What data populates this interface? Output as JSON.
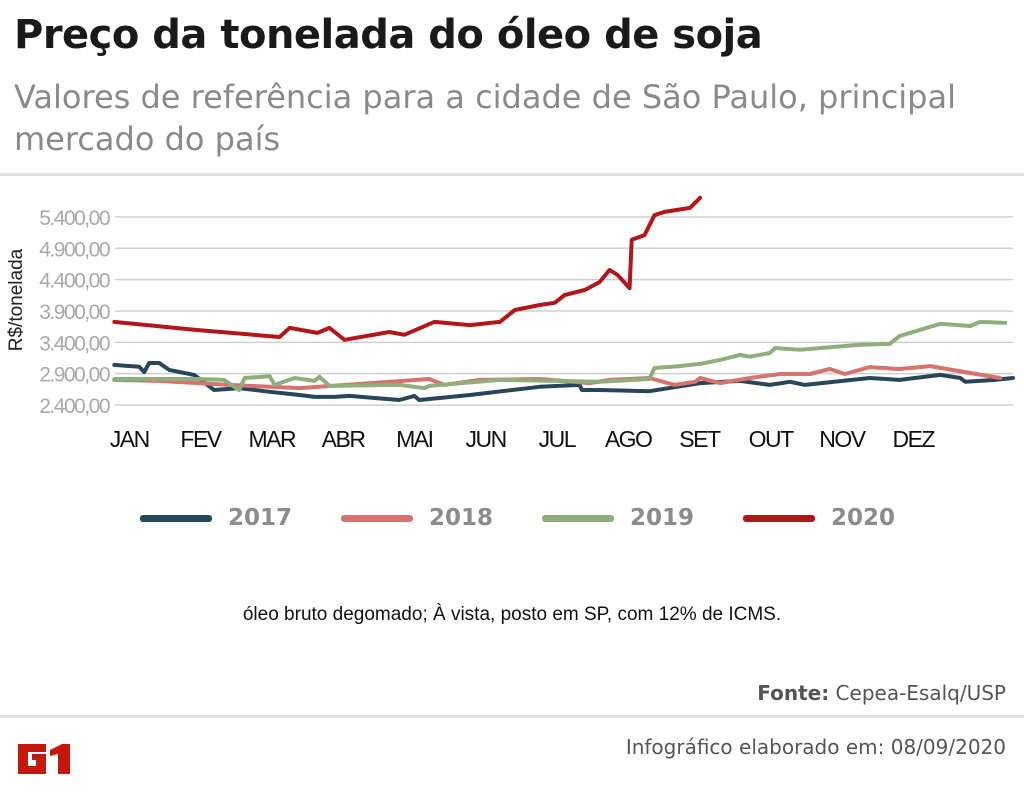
{
  "header": {
    "title": "Preço da tonelada do óleo de soja",
    "subtitle": "Valores de referência para a cidade de São Paulo, principal mercado do país"
  },
  "chart_data": {
    "type": "line",
    "title": "Preço da tonelada do óleo de soja",
    "subtitle": "Valores de referência para a cidade de São Paulo, principal mercado do país",
    "ylabel": "R$/tonelada",
    "xlabel": "",
    "x_ticks": [
      "JAN",
      "FEV",
      "MAR",
      "ABR",
      "MAI",
      "JUN",
      "JUL",
      "AGO",
      "SET",
      "OUT",
      "NOV",
      "DEZ"
    ],
    "y_ticks": [
      "2.400,00",
      "2.900,00",
      "3.400,00",
      "3.900,00",
      "4.400,00",
      "4.900,00",
      "5.400,00"
    ],
    "y_tick_values": [
      2400,
      2900,
      3400,
      3900,
      4400,
      4900,
      5400
    ],
    "xlim": [
      -0.2,
      12.4
    ],
    "ylim": [
      2400,
      5750
    ],
    "grid": "horizontal",
    "legend_position": "bottom",
    "series": [
      {
        "name": "2017",
        "color": "#284659",
        "points": [
          [
            -0.21,
            3040
          ],
          [
            0.14,
            3010
          ],
          [
            0.21,
            2925
          ],
          [
            0.28,
            3070
          ],
          [
            0.42,
            3070
          ],
          [
            0.56,
            2960
          ],
          [
            0.91,
            2880
          ],
          [
            1.19,
            2640
          ],
          [
            1.54,
            2670
          ],
          [
            1.97,
            2610
          ],
          [
            2.39,
            2560
          ],
          [
            2.6,
            2530
          ],
          [
            2.88,
            2530
          ],
          [
            3.09,
            2545
          ],
          [
            3.79,
            2480
          ],
          [
            4.0,
            2545
          ],
          [
            4.07,
            2480
          ],
          [
            4.78,
            2560
          ],
          [
            5.76,
            2690
          ],
          [
            6.32,
            2720
          ],
          [
            6.35,
            2640
          ],
          [
            6.6,
            2640
          ],
          [
            7.3,
            2620
          ],
          [
            8.01,
            2750
          ],
          [
            8.57,
            2785
          ],
          [
            8.99,
            2720
          ],
          [
            9.27,
            2770
          ],
          [
            9.48,
            2720
          ],
          [
            10.39,
            2830
          ],
          [
            10.81,
            2800
          ],
          [
            11.38,
            2880
          ],
          [
            11.66,
            2830
          ],
          [
            11.73,
            2770
          ],
          [
            12.15,
            2800
          ],
          [
            12.4,
            2830
          ]
        ]
      },
      {
        "name": "2018",
        "color": "#d7736e",
        "points": [
          [
            -0.21,
            2800
          ],
          [
            0.42,
            2785
          ],
          [
            1.4,
            2720
          ],
          [
            2.39,
            2670
          ],
          [
            4.21,
            2815
          ],
          [
            4.42,
            2720
          ],
          [
            4.92,
            2800
          ],
          [
            5.76,
            2815
          ],
          [
            6.46,
            2750
          ],
          [
            6.74,
            2800
          ],
          [
            7.3,
            2830
          ],
          [
            7.65,
            2720
          ],
          [
            7.94,
            2770
          ],
          [
            8.01,
            2830
          ],
          [
            8.29,
            2750
          ],
          [
            8.71,
            2830
          ],
          [
            9.13,
            2895
          ],
          [
            9.55,
            2895
          ],
          [
            9.83,
            2975
          ],
          [
            10.04,
            2895
          ],
          [
            10.39,
            3005
          ],
          [
            10.81,
            2975
          ],
          [
            11.24,
            3020
          ],
          [
            11.8,
            2910
          ],
          [
            12.22,
            2830
          ]
        ]
      },
      {
        "name": "2019",
        "color": "#8fae7c",
        "points": [
          [
            -0.21,
            2815
          ],
          [
            0.98,
            2815
          ],
          [
            1.33,
            2800
          ],
          [
            1.54,
            2640
          ],
          [
            1.62,
            2830
          ],
          [
            1.97,
            2860
          ],
          [
            2.04,
            2720
          ],
          [
            2.32,
            2830
          ],
          [
            2.6,
            2785
          ],
          [
            2.67,
            2850
          ],
          [
            2.81,
            2705
          ],
          [
            3.79,
            2720
          ],
          [
            4.14,
            2670
          ],
          [
            4.21,
            2705
          ],
          [
            5.2,
            2800
          ],
          [
            6.6,
            2770
          ],
          [
            7.3,
            2815
          ],
          [
            7.37,
            2990
          ],
          [
            7.72,
            3020
          ],
          [
            8.01,
            3055
          ],
          [
            8.29,
            3120
          ],
          [
            8.57,
            3200
          ],
          [
            8.71,
            3170
          ],
          [
            8.99,
            3230
          ],
          [
            9.06,
            3310
          ],
          [
            9.41,
            3280
          ],
          [
            10.25,
            3360
          ],
          [
            10.67,
            3375
          ],
          [
            10.81,
            3500
          ],
          [
            11.38,
            3695
          ],
          [
            11.8,
            3660
          ],
          [
            11.94,
            3725
          ],
          [
            12.29,
            3710
          ]
        ]
      },
      {
        "name": "2020",
        "color": "#b2161b",
        "points": [
          [
            -0.21,
            3725
          ],
          [
            0.91,
            3600
          ],
          [
            2.11,
            3485
          ],
          [
            2.25,
            3630
          ],
          [
            2.64,
            3550
          ],
          [
            2.81,
            3630
          ],
          [
            3.02,
            3440
          ],
          [
            3.65,
            3565
          ],
          [
            3.86,
            3520
          ],
          [
            4.28,
            3725
          ],
          [
            4.78,
            3675
          ],
          [
            5.2,
            3725
          ],
          [
            5.41,
            3915
          ],
          [
            5.76,
            3995
          ],
          [
            5.97,
            4030
          ],
          [
            6.11,
            4155
          ],
          [
            6.39,
            4235
          ],
          [
            6.6,
            4360
          ],
          [
            6.74,
            4555
          ],
          [
            6.85,
            4475
          ],
          [
            7.02,
            4265
          ],
          [
            7.05,
            5035
          ],
          [
            7.23,
            5110
          ],
          [
            7.37,
            5430
          ],
          [
            7.51,
            5480
          ],
          [
            7.87,
            5545
          ],
          [
            8.01,
            5705
          ]
        ]
      }
    ]
  },
  "note": "óleo bruto degomado; À vista, posto em SP, com 12% de ICMS.",
  "footer": {
    "source_label": "Fonte:",
    "source_value": "Cepea-Esalq/USP",
    "credit": "Infográfico elaborado em: 08/09/2020",
    "logo": "G1",
    "logo_color": "#c4170c"
  }
}
